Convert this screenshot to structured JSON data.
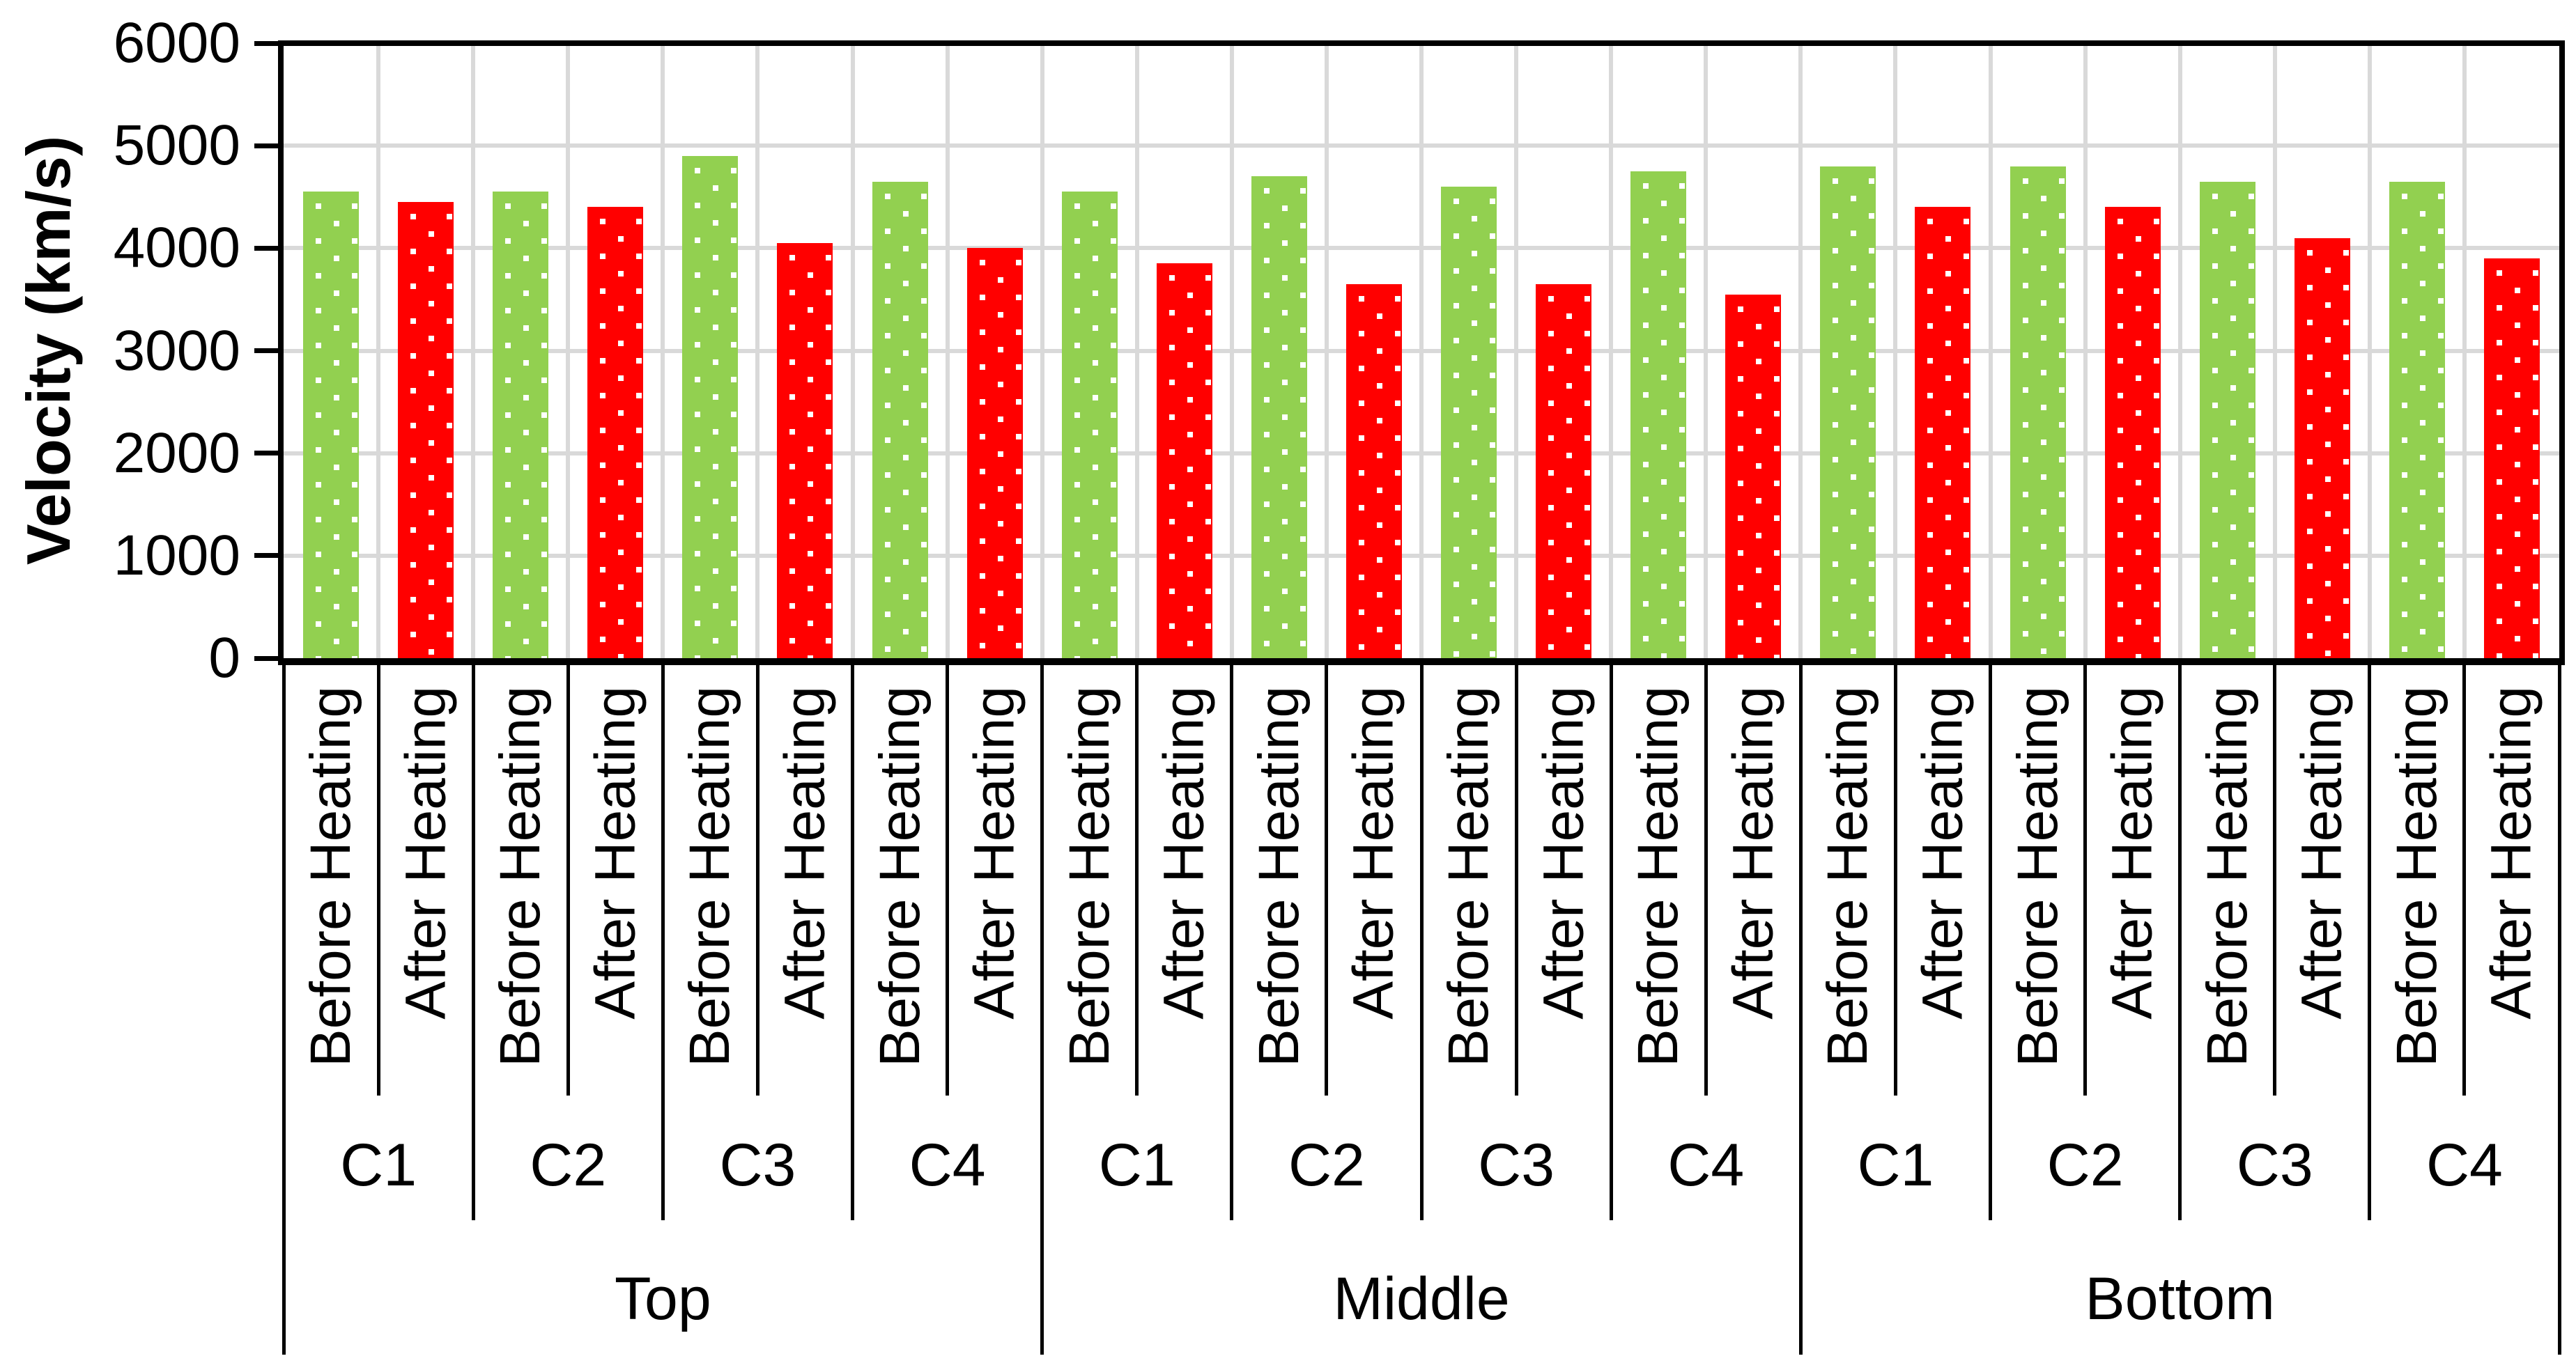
{
  "chart_data": {
    "type": "bar",
    "title": "",
    "ylabel": "Velocity (km/s)",
    "xlabel": "",
    "ylim": [
      0,
      6000
    ],
    "yticks": [
      0,
      1000,
      2000,
      3000,
      4000,
      5000,
      6000
    ],
    "grid": true,
    "legend": "none",
    "background_color": "#FFFFFF",
    "gridline_color": "#D9D9D9",
    "axis_color": "#000000",
    "bar_pattern": "white-dots",
    "sections": [
      "Top",
      "Middle",
      "Bottom"
    ],
    "conditions": [
      "C1",
      "C2",
      "C3",
      "C4"
    ],
    "series": [
      {
        "name": "Before Heating",
        "color": "#92D050",
        "values": {
          "Top": [
            4550,
            4550,
            4900,
            4650
          ],
          "Middle": [
            4550,
            4700,
            4600,
            4750
          ],
          "Bottom": [
            4800,
            4800,
            4650,
            4650
          ]
        }
      },
      {
        "name": "After Heating",
        "color": "#FF0000",
        "values": {
          "Top": [
            4450,
            4400,
            4050,
            4000
          ],
          "Middle": [
            3850,
            3650,
            3650,
            3550
          ],
          "Bottom": [
            4400,
            4400,
            4100,
            3900
          ]
        }
      }
    ]
  }
}
